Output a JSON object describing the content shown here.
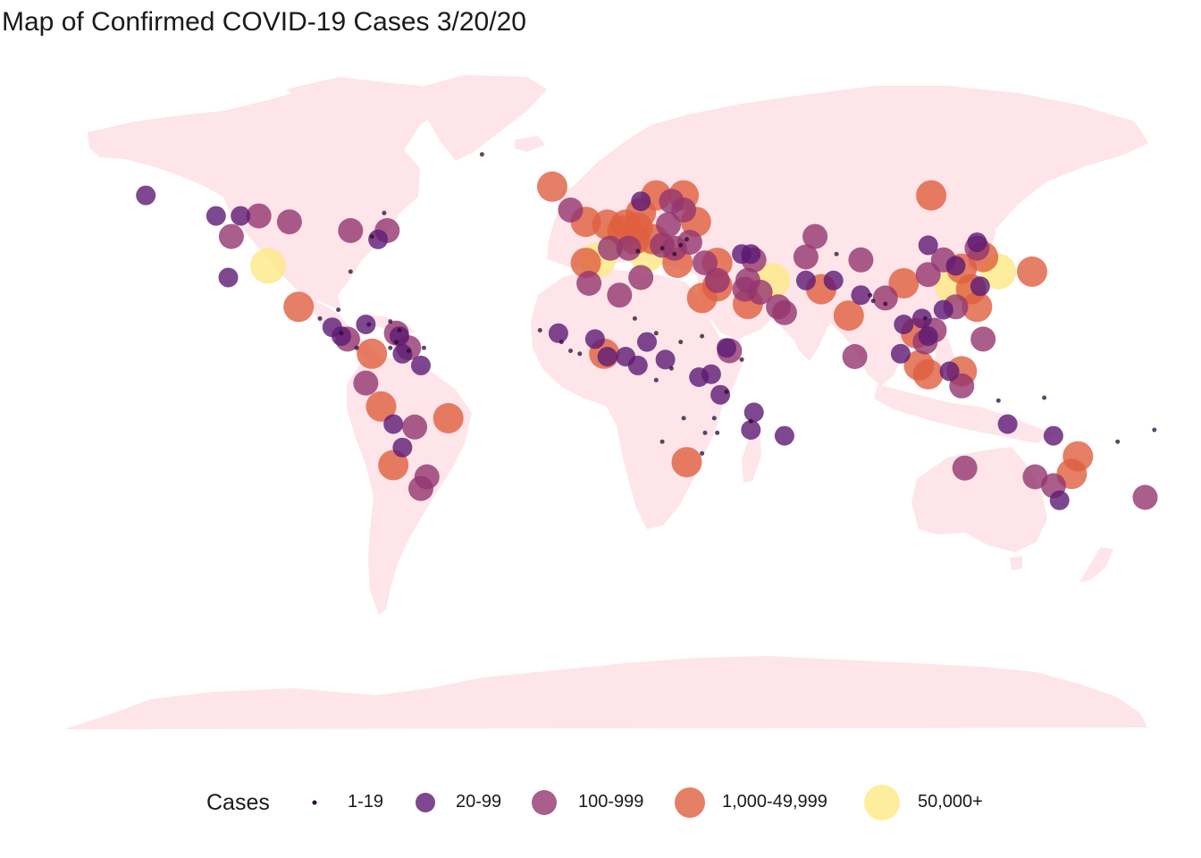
{
  "title": "Map of Confirmed COVID-19 Cases 3/20/20",
  "colors": {
    "land": "#fde5ea",
    "background": "#ffffff",
    "categories": [
      "#2a0a33",
      "#5c1a74",
      "#93366f",
      "#df5f3e",
      "#fdea85"
    ]
  },
  "legend": {
    "title": "Cases",
    "items": [
      {
        "label": "1-19",
        "category": 0
      },
      {
        "label": "20-99",
        "category": 1
      },
      {
        "label": "100-999",
        "category": 2
      },
      {
        "label": "1,000-49,999",
        "category": 3
      },
      {
        "label": "50,000+",
        "category": 4
      }
    ]
  },
  "chart_data": {
    "type": "scatter",
    "title": "Map of Confirmed COVID-19 Cases 3/20/20",
    "x_axis": "longitude",
    "y_axis": "latitude",
    "xlim": [
      -170,
      180
    ],
    "ylim": [
      -90,
      84
    ],
    "size_variable": "Cases",
    "points": [
      {
        "lon": -112,
        "lat": 38,
        "cat": 4
      },
      {
        "lon": 12,
        "lat": 42,
        "cat": 4
      },
      {
        "lon": 112,
        "lat": 31,
        "cat": 4
      },
      {
        "lon": -4,
        "lat": 40,
        "cat": 4
      },
      {
        "lon": 53,
        "lat": 33,
        "cat": 4
      },
      {
        "lon": 127,
        "lat": 36,
        "cat": 4
      },
      {
        "lon": 3,
        "lat": 48,
        "cat": 4
      },
      {
        "lon": 9,
        "lat": 51,
        "cat": 3
      },
      {
        "lon": 8,
        "lat": 47,
        "cat": 3
      },
      {
        "lon": -1,
        "lat": 52,
        "cat": 3
      },
      {
        "lon": 5,
        "lat": 52,
        "cat": 3
      },
      {
        "lon": 15,
        "lat": 62,
        "cat": 3
      },
      {
        "lon": 24,
        "lat": 62,
        "cat": 3
      },
      {
        "lon": 10,
        "lat": 56,
        "cat": 3
      },
      {
        "lon": 14,
        "lat": 47,
        "cat": 3
      },
      {
        "lon": 4,
        "lat": 50,
        "cat": 3
      },
      {
        "lon": -8,
        "lat": 53,
        "cat": 3
      },
      {
        "lon": -8,
        "lat": 39,
        "cat": 3
      },
      {
        "lon": -19,
        "lat": 65,
        "cat": 3
      },
      {
        "lon": 22,
        "lat": 39,
        "cat": 3
      },
      {
        "lon": 35,
        "lat": 39,
        "cat": 3
      },
      {
        "lon": 35,
        "lat": 31,
        "cat": 3
      },
      {
        "lon": 45,
        "lat": 25,
        "cat": 3
      },
      {
        "lon": 69,
        "lat": 30,
        "cat": 3
      },
      {
        "lon": 101,
        "lat": 4,
        "cat": 3
      },
      {
        "lon": 104,
        "lat": 1,
        "cat": 3
      },
      {
        "lon": 115,
        "lat": 37,
        "cat": 3
      },
      {
        "lon": 118,
        "lat": 30,
        "cat": 3
      },
      {
        "lon": 120,
        "lat": 24,
        "cat": 3
      },
      {
        "lon": 138,
        "lat": 36,
        "cat": 3
      },
      {
        "lon": 122,
        "lat": 41,
        "cat": 3
      },
      {
        "lon": -102,
        "lat": 24,
        "cat": 3
      },
      {
        "lon": -78,
        "lat": 8,
        "cat": 3
      },
      {
        "lon": -75,
        "lat": -10,
        "cat": 3
      },
      {
        "lon": -53,
        "lat": -14,
        "cat": 3
      },
      {
        "lon": -71,
        "lat": -30,
        "cat": 3
      },
      {
        "lon": 30,
        "lat": 27,
        "cat": 3
      },
      {
        "lon": 78,
        "lat": 21,
        "cat": 3
      },
      {
        "lon": 100,
        "lat": 15,
        "cat": 3
      },
      {
        "lon": 115,
        "lat": 2,
        "cat": 3
      },
      {
        "lon": 25,
        "lat": -29,
        "cat": 3
      },
      {
        "lon": 151,
        "lat": -33,
        "cat": 3
      },
      {
        "lon": 153,
        "lat": -27,
        "cat": 3
      },
      {
        "lon": -2,
        "lat": 8,
        "cat": 3
      },
      {
        "lon": 96,
        "lat": 32,
        "cat": 3
      },
      {
        "lon": 28,
        "lat": 53,
        "cat": 3
      },
      {
        "lon": 105,
        "lat": 62,
        "cat": 3
      },
      {
        "lon": -124,
        "lat": 48,
        "cat": 2
      },
      {
        "lon": -115,
        "lat": 55,
        "cat": 2
      },
      {
        "lon": -105,
        "lat": 53,
        "cat": 2
      },
      {
        "lon": -85,
        "lat": 50,
        "cat": 2
      },
      {
        "lon": -73,
        "lat": 50,
        "cat": 2
      },
      {
        "lon": -60,
        "lat": -34,
        "cat": 2
      },
      {
        "lon": -64,
        "lat": -17,
        "cat": 2
      },
      {
        "lon": -70,
        "lat": 15,
        "cat": 2
      },
      {
        "lon": 55,
        "lat": 24,
        "cat": 2
      },
      {
        "lon": 49,
        "lat": 29,
        "cat": 2
      },
      {
        "lon": 45,
        "lat": 33,
        "cat": 2
      },
      {
        "lon": 35,
        "lat": 33,
        "cat": 2
      },
      {
        "lon": 31,
        "lat": 39,
        "cat": 2
      },
      {
        "lon": 47,
        "lat": 40,
        "cat": 2
      },
      {
        "lon": 67,
        "lat": 48,
        "cat": 2
      },
      {
        "lon": 64,
        "lat": 41,
        "cat": 2
      },
      {
        "lon": 82,
        "lat": 40,
        "cat": 2
      },
      {
        "lon": 90,
        "lat": 27,
        "cat": 2
      },
      {
        "lon": 104,
        "lat": 35,
        "cat": 2
      },
      {
        "lon": 109,
        "lat": 40,
        "cat": 2
      },
      {
        "lon": 120,
        "lat": 44,
        "cat": 2
      },
      {
        "lon": 113,
        "lat": 24,
        "cat": 2
      },
      {
        "lon": 122,
        "lat": 13,
        "cat": 2
      },
      {
        "lon": 106,
        "lat": 16,
        "cat": 2
      },
      {
        "lon": 103,
        "lat": 12,
        "cat": 2
      },
      {
        "lon": 80,
        "lat": 7,
        "cat": 2
      },
      {
        "lon": 115,
        "lat": -3,
        "cat": 2
      },
      {
        "lon": 116,
        "lat": -31,
        "cat": 2
      },
      {
        "lon": 139,
        "lat": -34,
        "cat": 2
      },
      {
        "lon": 145,
        "lat": -37,
        "cat": 2
      },
      {
        "lon": 175,
        "lat": -41,
        "cat": 2
      },
      {
        "lon": -62,
        "lat": -38,
        "cat": 2
      },
      {
        "lon": -80,
        "lat": -2,
        "cat": 2
      },
      {
        "lon": -86,
        "lat": 13,
        "cat": 2
      },
      {
        "lon": -66,
        "lat": 10,
        "cat": 2
      },
      {
        "lon": 10,
        "lat": 34,
        "cat": 2
      },
      {
        "lon": -7,
        "lat": 32,
        "cat": 2
      },
      {
        "lon": 3,
        "lat": 28,
        "cat": 2
      },
      {
        "lon": 39,
        "lat": 9,
        "cat": 2
      },
      {
        "lon": 20,
        "lat": 60,
        "cat": 2
      },
      {
        "lon": 24,
        "lat": 57,
        "cat": 2
      },
      {
        "lon": 19,
        "lat": 52,
        "cat": 2
      },
      {
        "lon": 26,
        "lat": 46,
        "cat": 2
      },
      {
        "lon": 17,
        "lat": 45,
        "cat": 2
      },
      {
        "lon": 21,
        "lat": 44,
        "cat": 2
      },
      {
        "lon": 0,
        "lat": 44,
        "cat": 2
      },
      {
        "lon": 6,
        "lat": 44,
        "cat": 2
      },
      {
        "lon": -13,
        "lat": 57,
        "cat": 2
      },
      {
        "lon": 44,
        "lat": 30,
        "cat": 2
      },
      {
        "lon": 57,
        "lat": 22,
        "cat": 2
      },
      {
        "lon": -152,
        "lat": 62,
        "cat": 1
      },
      {
        "lon": -129,
        "lat": 55,
        "cat": 1
      },
      {
        "lon": -121,
        "lat": 55,
        "cat": 1
      },
      {
        "lon": -76,
        "lat": 47,
        "cat": 1
      },
      {
        "lon": -125,
        "lat": 34,
        "cat": 1
      },
      {
        "lon": -91,
        "lat": 17,
        "cat": 1
      },
      {
        "lon": -88,
        "lat": 14,
        "cat": 1
      },
      {
        "lon": -80,
        "lat": 18,
        "cat": 1
      },
      {
        "lon": -69,
        "lat": 14,
        "cat": 1
      },
      {
        "lon": -68,
        "lat": 8,
        "cat": 1
      },
      {
        "lon": -62,
        "lat": 4,
        "cat": 1
      },
      {
        "lon": -71,
        "lat": -16,
        "cat": 1
      },
      {
        "lon": -68,
        "lat": -24,
        "cat": 1
      },
      {
        "lon": 12,
        "lat": 12,
        "cat": 1
      },
      {
        "lon": 5,
        "lat": 7,
        "cat": 1
      },
      {
        "lon": 18,
        "lat": 6,
        "cat": 1
      },
      {
        "lon": 29,
        "lat": 0,
        "cat": 1
      },
      {
        "lon": 36,
        "lat": -6,
        "cat": 1
      },
      {
        "lon": 47,
        "lat": -12,
        "cat": 1
      },
      {
        "lon": 57,
        "lat": -20,
        "cat": 1
      },
      {
        "lon": 38,
        "lat": 10,
        "cat": 1
      },
      {
        "lon": -17,
        "lat": 15,
        "cat": 1
      },
      {
        "lon": 64,
        "lat": 33,
        "cat": 1
      },
      {
        "lon": 73,
        "lat": 33,
        "cat": 1
      },
      {
        "lon": 82,
        "lat": 28,
        "cat": 1
      },
      {
        "lon": 96,
        "lat": 18,
        "cat": 1
      },
      {
        "lon": 102,
        "lat": 20,
        "cat": 1
      },
      {
        "lon": 104,
        "lat": 14,
        "cat": 1
      },
      {
        "lon": 109,
        "lat": 23,
        "cat": 1
      },
      {
        "lon": 111,
        "lat": 2,
        "cat": 1
      },
      {
        "lon": 130,
        "lat": -16,
        "cat": 1
      },
      {
        "lon": 147,
        "lat": -42,
        "cat": 1
      },
      {
        "lon": 145,
        "lat": -20,
        "cat": 1
      },
      {
        "lon": 95,
        "lat": 8,
        "cat": 1
      },
      {
        "lon": 113,
        "lat": 38,
        "cat": 1
      },
      {
        "lon": 120,
        "lat": 46,
        "cat": 1
      },
      {
        "lon": 104,
        "lat": 45,
        "cat": 1
      },
      {
        "lon": 33,
        "lat": 1,
        "cat": 1
      },
      {
        "lon": 9,
        "lat": 4,
        "cat": 1
      },
      {
        "lon": -1,
        "lat": 7,
        "cat": 1
      },
      {
        "lon": -5,
        "lat": 13,
        "cat": 1
      },
      {
        "lon": 43,
        "lat": 42,
        "cat": 1
      },
      {
        "lon": 46,
        "lat": 42,
        "cat": 1
      },
      {
        "lon": 10,
        "lat": 60,
        "cat": 1
      },
      {
        "lon": 46,
        "lat": -18,
        "cat": 1
      },
      {
        "lon": 121,
        "lat": 31,
        "cat": 1
      },
      {
        "lon": -42,
        "lat": 76,
        "cat": 0
      },
      {
        "lon": -74,
        "lat": 56,
        "cat": 0
      },
      {
        "lon": -78,
        "lat": 48,
        "cat": 0
      },
      {
        "lon": -85,
        "lat": 36,
        "cat": 0
      },
      {
        "lon": -89,
        "lat": 23,
        "cat": 0
      },
      {
        "lon": -95,
        "lat": 20,
        "cat": 0
      },
      {
        "lon": -79,
        "lat": 18,
        "cat": 0
      },
      {
        "lon": -72,
        "lat": 19,
        "cat": 0
      },
      {
        "lon": -69,
        "lat": 16,
        "cat": 0
      },
      {
        "lon": -70,
        "lat": 12,
        "cat": 0
      },
      {
        "lon": -61,
        "lat": 10,
        "cat": 0
      },
      {
        "lon": -72,
        "lat": 10,
        "cat": 0
      },
      {
        "lon": -66,
        "lat": 9,
        "cat": 0
      },
      {
        "lon": -83,
        "lat": 10,
        "cat": 0
      },
      {
        "lon": -88,
        "lat": 15,
        "cat": 0
      },
      {
        "lon": -23,
        "lat": 16,
        "cat": 0
      },
      {
        "lon": -16,
        "lat": 12,
        "cat": 0
      },
      {
        "lon": -13,
        "lat": 9,
        "cat": 0
      },
      {
        "lon": -10,
        "lat": 8,
        "cat": 0
      },
      {
        "lon": 8,
        "lat": 20,
        "cat": 0
      },
      {
        "lon": 15,
        "lat": 15,
        "cat": 0
      },
      {
        "lon": 23,
        "lat": 12,
        "cat": 0
      },
      {
        "lon": 30,
        "lat": 14,
        "cat": 0
      },
      {
        "lon": 20,
        "lat": 3,
        "cat": 0
      },
      {
        "lon": 15,
        "lat": -1,
        "cat": 0
      },
      {
        "lon": 24,
        "lat": -14,
        "cat": 0
      },
      {
        "lon": 34,
        "lat": -14,
        "cat": 0
      },
      {
        "lon": 31,
        "lat": -19,
        "cat": 0
      },
      {
        "lon": 17,
        "lat": -22,
        "cat": 0
      },
      {
        "lon": 30,
        "lat": -26,
        "cat": 0
      },
      {
        "lon": 35,
        "lat": -19,
        "cat": 0
      },
      {
        "lon": 46,
        "lat": -15,
        "cat": 0
      },
      {
        "lon": 38,
        "lat": -5,
        "cat": 0
      },
      {
        "lon": 43,
        "lat": 6,
        "cat": 0
      },
      {
        "lon": 74,
        "lat": 42,
        "cat": 0
      },
      {
        "lon": 90,
        "lat": 25,
        "cat": 0
      },
      {
        "lon": 86,
        "lat": 26,
        "cat": 0
      },
      {
        "lon": 85,
        "lat": 28,
        "cat": 0
      },
      {
        "lon": 103,
        "lat": 20,
        "cat": 0
      },
      {
        "lon": 127,
        "lat": -8,
        "cat": 0
      },
      {
        "lon": 142,
        "lat": -7,
        "cat": 0
      },
      {
        "lon": 166,
        "lat": -22,
        "cat": 0
      },
      {
        "lon": 178,
        "lat": -18,
        "cat": 0
      },
      {
        "lon": 17,
        "lat": 44,
        "cat": 0
      },
      {
        "lon": 25,
        "lat": 47,
        "cat": 0
      },
      {
        "lon": 9,
        "lat": 43,
        "cat": 0
      },
      {
        "lon": 21,
        "lat": 42,
        "cat": 0
      },
      {
        "lon": 23,
        "lat": 45,
        "cat": 0
      }
    ]
  }
}
